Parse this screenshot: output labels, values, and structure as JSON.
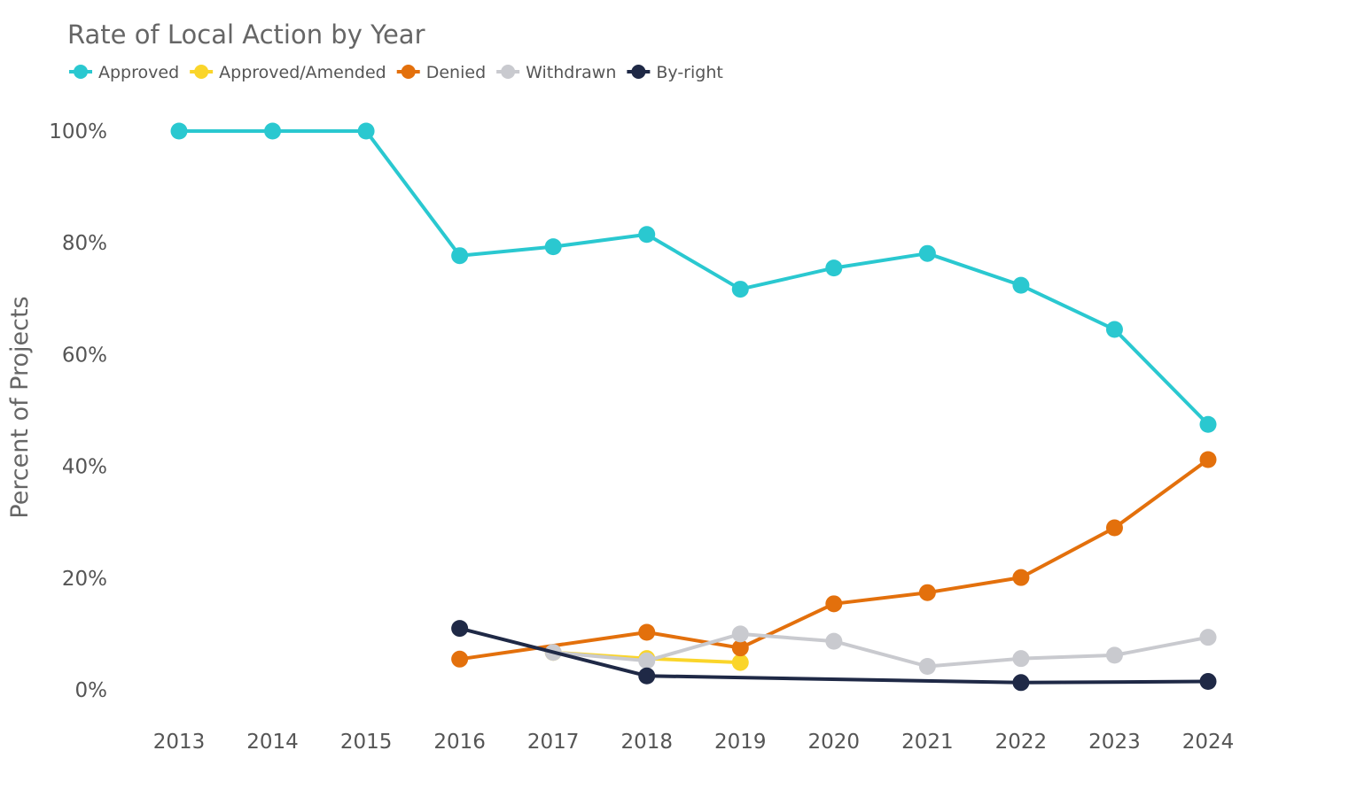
{
  "chart_data": {
    "type": "line",
    "title": "Rate of Local Action by Year",
    "xlabel": "",
    "ylabel": "Percent of Projects",
    "x": [
      2013,
      2014,
      2015,
      2016,
      2017,
      2018,
      2019,
      2020,
      2021,
      2022,
      2023,
      2024
    ],
    "ylim": [
      0,
      100
    ],
    "yticks": [
      0,
      20,
      40,
      60,
      80,
      100
    ],
    "ytick_labels": [
      "0%",
      "20%",
      "40%",
      "60%",
      "80%",
      "100%"
    ],
    "grid": false,
    "legend_position": "top-left",
    "series": [
      {
        "name": "Approved",
        "color": "#2ac8d0",
        "values": [
          100,
          100,
          100,
          77.7,
          79.3,
          81.5,
          71.7,
          75.5,
          78.1,
          72.4,
          64.5,
          47.5
        ]
      },
      {
        "name": "Approved/Amended",
        "color": "#fad52a",
        "values": [
          null,
          null,
          null,
          null,
          6.7,
          5.6,
          4.9,
          null,
          null,
          null,
          null,
          null
        ]
      },
      {
        "name": "Denied",
        "color": "#e3700c",
        "values": [
          null,
          null,
          null,
          5.5,
          null,
          10.3,
          7.5,
          15.4,
          17.4,
          20.1,
          29.0,
          41.2
        ]
      },
      {
        "name": "Withdrawn",
        "color": "#c9cacf",
        "values": [
          null,
          null,
          null,
          null,
          6.7,
          5.2,
          10.0,
          8.7,
          4.2,
          5.6,
          6.2,
          9.4
        ]
      },
      {
        "name": "By-right",
        "color": "#1f2946",
        "values": [
          null,
          null,
          null,
          11.0,
          null,
          2.5,
          null,
          null,
          null,
          1.3,
          null,
          1.5
        ]
      }
    ]
  }
}
